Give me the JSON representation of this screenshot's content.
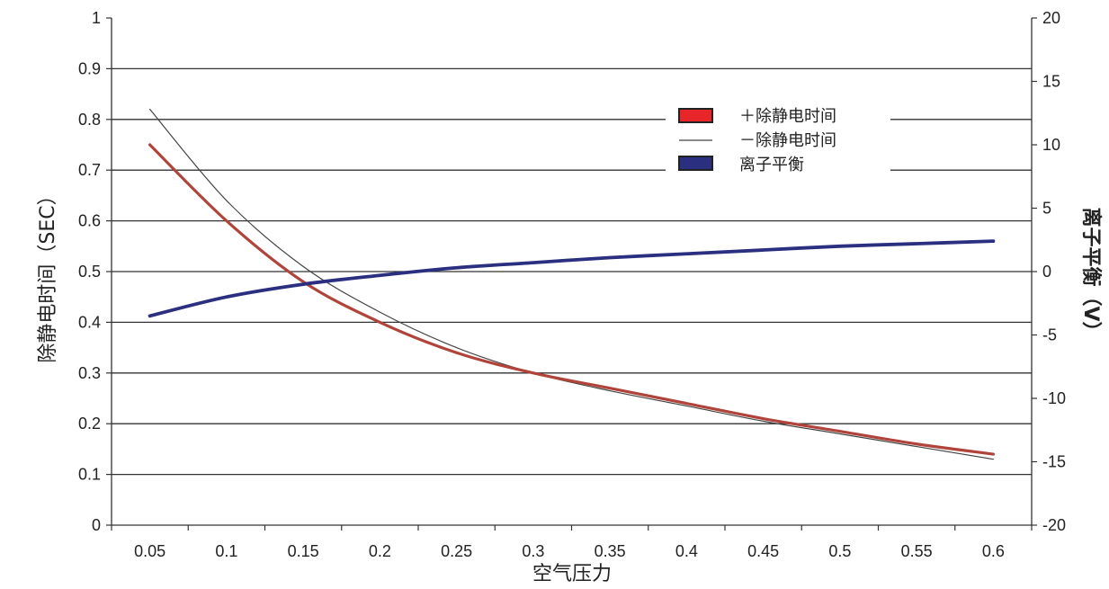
{
  "chart_data": {
    "type": "line",
    "xlabel": "空气压力",
    "ylabel_left": "除静电时间（SEC）",
    "ylabel_right": "离子平衡（V）",
    "x_ticks": [
      "0.05",
      "0.1",
      "0.15",
      "0.2",
      "0.25",
      "0.3",
      "0.35",
      "0.4",
      "0.45",
      "0.5",
      "0.55",
      "0.6"
    ],
    "y_left_ticks": [
      "0",
      "0.1",
      "0.2",
      "0.3",
      "0.4",
      "0.5",
      "0.6",
      "0.7",
      "0.8",
      "0.9",
      "1"
    ],
    "y_right_ticks": [
      "-20",
      "-15",
      "-10",
      "-5",
      "0",
      "5",
      "10",
      "15",
      "20"
    ],
    "ylim_left": [
      0,
      1
    ],
    "ylim_right": [
      -20,
      20
    ],
    "grid": "horizontal",
    "legend_position": "top-right",
    "series": [
      {
        "name": "＋除静电时间",
        "axis": "left",
        "color": "#b0443a",
        "x": [
          0.05,
          0.1,
          0.15,
          0.2,
          0.25,
          0.3,
          0.35,
          0.4,
          0.45,
          0.5,
          0.55,
          0.6
        ],
        "values": [
          0.75,
          0.6,
          0.48,
          0.4,
          0.34,
          0.3,
          0.27,
          0.24,
          0.21,
          0.185,
          0.16,
          0.14
        ]
      },
      {
        "name": "－除静电时间",
        "axis": "left",
        "color": "#444444",
        "x": [
          0.05,
          0.1,
          0.15,
          0.2,
          0.25,
          0.3,
          0.35,
          0.4,
          0.45,
          0.5,
          0.55,
          0.6
        ],
        "values": [
          0.82,
          0.64,
          0.51,
          0.42,
          0.35,
          0.3,
          0.265,
          0.235,
          0.205,
          0.18,
          0.155,
          0.13
        ]
      },
      {
        "name": "离子平衡",
        "axis": "right",
        "color": "#2b2f7f",
        "x": [
          0.05,
          0.1,
          0.15,
          0.2,
          0.25,
          0.3,
          0.35,
          0.4,
          0.45,
          0.5,
          0.55,
          0.6
        ],
        "values": [
          -3.5,
          -2.0,
          -1.0,
          -0.3,
          0.3,
          0.7,
          1.1,
          1.4,
          1.7,
          2.0,
          2.2,
          2.4
        ]
      }
    ],
    "legend_entries": [
      {
        "label": "＋除静电时间",
        "color": "#e8262a",
        "style": "box"
      },
      {
        "label": "－除静电时间",
        "color": "#444444",
        "style": "line"
      },
      {
        "label": "离子平衡",
        "color": "#2b2f7f",
        "style": "box"
      }
    ]
  }
}
